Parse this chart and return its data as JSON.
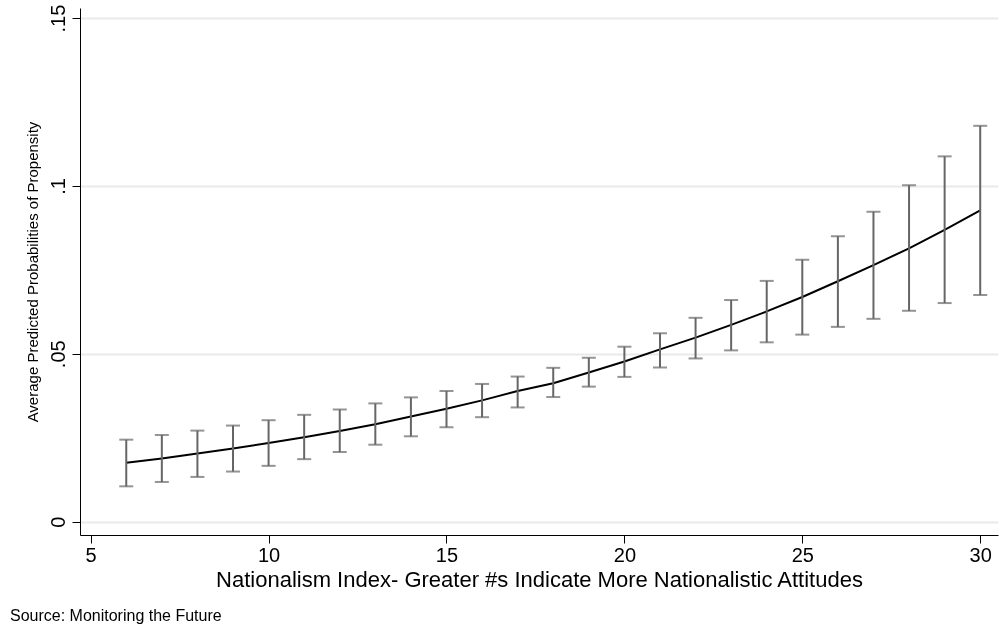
{
  "chart_data": {
    "type": "line",
    "xlabel": "Nationalism Index- Greater #s Indicate More Nationalistic Attitudes",
    "ylabel": "Average Predicted Probabilities of Propensity",
    "x": [
      6,
      7,
      8,
      9,
      10,
      11,
      12,
      13,
      14,
      15,
      16,
      17,
      18,
      19,
      20,
      21,
      22,
      23,
      24,
      25,
      26,
      27,
      28,
      29,
      30
    ],
    "series": [
      {
        "color": "#000000",
        "values": [
          0.0175,
          0.0188,
          0.0203,
          0.0218,
          0.0234,
          0.0251,
          0.027,
          0.029,
          0.0313,
          0.0336,
          0.0361,
          0.0389,
          0.0412,
          0.0444,
          0.0477,
          0.0513,
          0.0548,
          0.0586,
          0.0626,
          0.0669,
          0.0716,
          0.0764,
          0.0814,
          0.0869,
          0.0927
        ],
        "errors": [
          [
            0.0105,
            0.0244
          ],
          [
            0.0118,
            0.0258
          ],
          [
            0.0133,
            0.0271
          ],
          [
            0.0149,
            0.0286
          ],
          [
            0.0166,
            0.0302
          ],
          [
            0.0186,
            0.0318
          ],
          [
            0.0207,
            0.0334
          ],
          [
            0.0229,
            0.0352
          ],
          [
            0.0254,
            0.037
          ],
          [
            0.0281,
            0.0389
          ],
          [
            0.0311,
            0.041
          ],
          [
            0.034,
            0.0432
          ],
          [
            0.0371,
            0.0458
          ],
          [
            0.0402,
            0.0488
          ],
          [
            0.0431,
            0.0521
          ],
          [
            0.0459,
            0.0561
          ],
          [
            0.0486,
            0.0607
          ],
          [
            0.051,
            0.066
          ],
          [
            0.0534,
            0.0717
          ],
          [
            0.0557,
            0.078
          ],
          [
            0.058,
            0.085
          ],
          [
            0.0604,
            0.0923
          ],
          [
            0.0628,
            0.1002
          ],
          [
            0.0651,
            0.1088
          ],
          [
            0.0675,
            0.1179
          ]
        ]
      }
    ],
    "xlim": [
      4.7,
      30.5
    ],
    "xticks": [
      5,
      10,
      15,
      20,
      25,
      30
    ],
    "ylim": [
      -0.004,
      0.153
    ],
    "yticks": [
      0,
      {
        "value": 0.05,
        "label": ".05"
      },
      {
        "value": 0.1,
        "label": ".1"
      },
      {
        "value": 0.15,
        "label": ".15"
      }
    ],
    "grid": "y",
    "marker": "none",
    "line_style": "solid",
    "annotations": [
      "Source: Monitoring the Future"
    ]
  }
}
